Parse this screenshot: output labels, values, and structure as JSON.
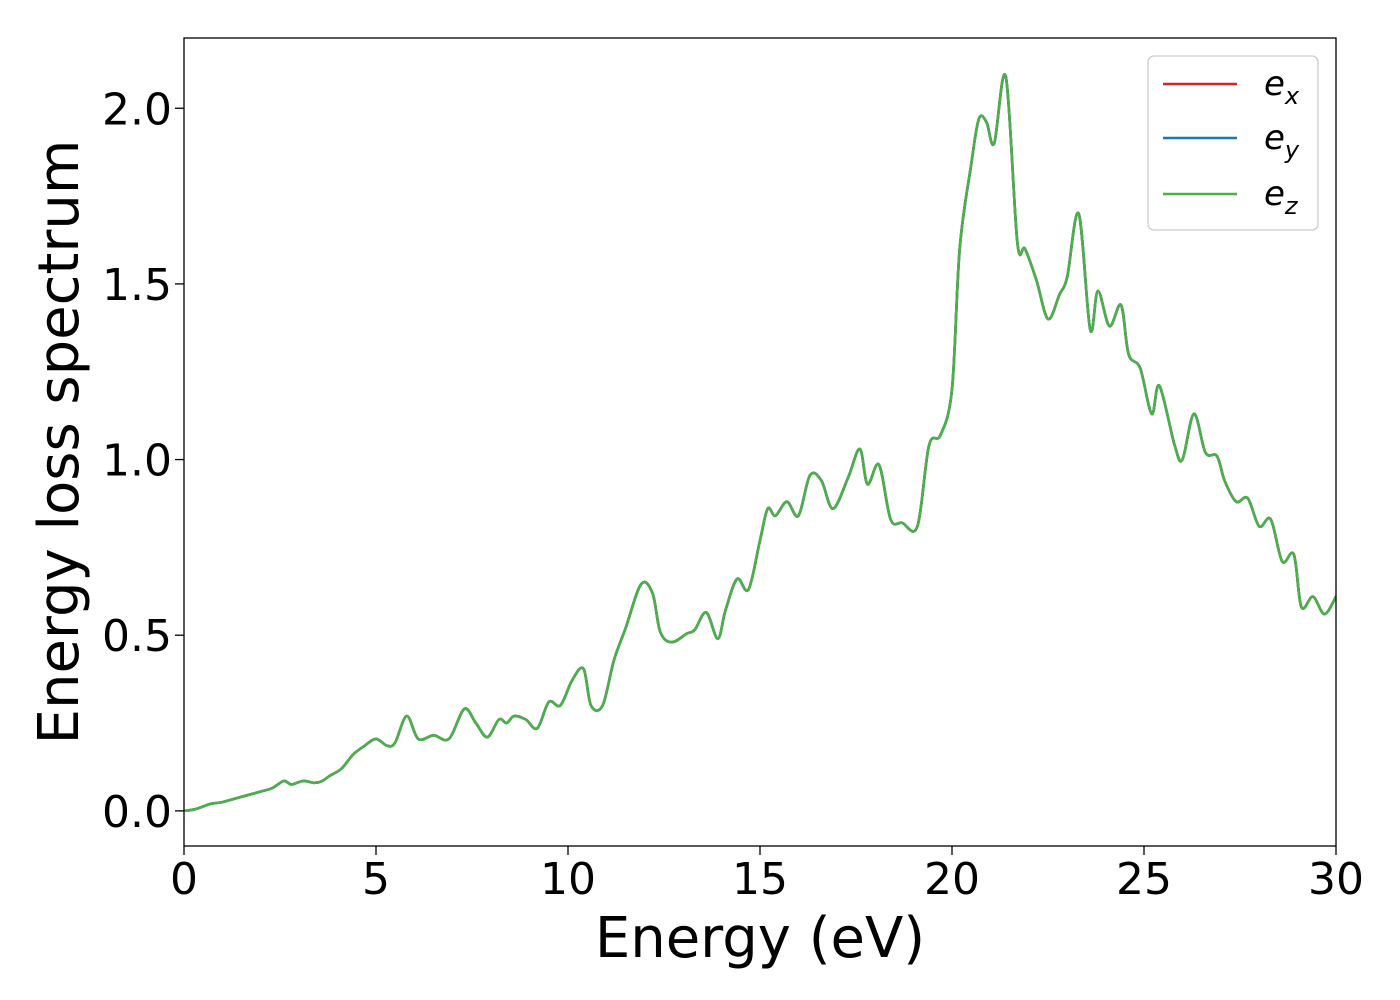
{
  "chart_data": {
    "type": "line",
    "title": "",
    "xlabel": "Energy (eV)",
    "ylabel": "Energy loss spectrum",
    "xlim": [
      0,
      30
    ],
    "ylim": [
      -0.1,
      2.2
    ],
    "xticks": [
      0,
      5,
      10,
      15,
      20,
      25,
      30
    ],
    "xtick_labels": [
      "0",
      "5",
      "10",
      "15",
      "20",
      "25",
      "30"
    ],
    "yticks": [
      0.0,
      0.5,
      1.0,
      1.5,
      2.0
    ],
    "ytick_labels": [
      "0.0",
      "0.5",
      "1.0",
      "1.5",
      "2.0"
    ],
    "grid": false,
    "legend_position": "top-right",
    "series": [
      {
        "name": "e",
        "subscript": "x",
        "color": "#d62728"
      },
      {
        "name": "e",
        "subscript": "y",
        "color": "#1f77b4"
      },
      {
        "name": "e",
        "subscript": "z",
        "color": "#4daf4a"
      }
    ],
    "x": [
      0.0,
      0.3,
      0.7,
      1.0,
      1.5,
      2.0,
      2.3,
      2.6,
      2.8,
      3.1,
      3.4,
      3.6,
      3.8,
      4.1,
      4.4,
      4.7,
      5.0,
      5.3,
      5.5,
      5.8,
      6.1,
      6.5,
      6.9,
      7.3,
      7.6,
      7.9,
      8.2,
      8.4,
      8.6,
      8.9,
      9.2,
      9.5,
      9.8,
      10.1,
      10.4,
      10.6,
      10.9,
      11.2,
      11.5,
      11.9,
      12.2,
      12.4,
      12.7,
      13.1,
      13.3,
      13.6,
      13.9,
      14.1,
      14.4,
      14.7,
      15.0,
      15.2,
      15.4,
      15.7,
      16.0,
      16.3,
      16.6,
      16.9,
      17.3,
      17.6,
      17.8,
      18.1,
      18.4,
      18.7,
      19.1,
      19.4,
      19.7,
      20.0,
      20.2,
      20.5,
      20.7,
      20.9,
      21.1,
      21.4,
      21.7,
      21.9,
      22.2,
      22.5,
      22.8,
      23.0,
      23.3,
      23.6,
      23.8,
      24.1,
      24.4,
      24.6,
      24.9,
      25.2,
      25.4,
      25.8,
      26.0,
      26.3,
      26.6,
      26.9,
      27.1,
      27.4,
      27.7,
      28.0,
      28.3,
      28.6,
      28.9,
      29.1,
      29.4,
      29.7,
      30.0
    ],
    "y": [
      0.0,
      0.005,
      0.02,
      0.025,
      0.04,
      0.055,
      0.065,
      0.085,
      0.075,
      0.085,
      0.08,
      0.085,
      0.1,
      0.12,
      0.16,
      0.185,
      0.205,
      0.185,
      0.195,
      0.27,
      0.205,
      0.215,
      0.205,
      0.29,
      0.25,
      0.21,
      0.26,
      0.25,
      0.27,
      0.26,
      0.235,
      0.31,
      0.3,
      0.37,
      0.405,
      0.3,
      0.3,
      0.43,
      0.52,
      0.645,
      0.62,
      0.51,
      0.48,
      0.505,
      0.515,
      0.565,
      0.49,
      0.57,
      0.66,
      0.63,
      0.77,
      0.86,
      0.84,
      0.88,
      0.84,
      0.955,
      0.94,
      0.86,
      0.95,
      1.03,
      0.93,
      0.985,
      0.83,
      0.82,
      0.81,
      1.04,
      1.07,
      1.2,
      1.6,
      1.84,
      1.97,
      1.96,
      1.9,
      2.09,
      1.62,
      1.6,
      1.51,
      1.4,
      1.47,
      1.52,
      1.7,
      1.37,
      1.48,
      1.38,
      1.44,
      1.3,
      1.26,
      1.13,
      1.21,
      1.04,
      1.0,
      1.13,
      1.02,
      1.01,
      0.94,
      0.88,
      0.89,
      0.81,
      0.83,
      0.71,
      0.73,
      0.58,
      0.61,
      0.56,
      0.61
    ]
  }
}
